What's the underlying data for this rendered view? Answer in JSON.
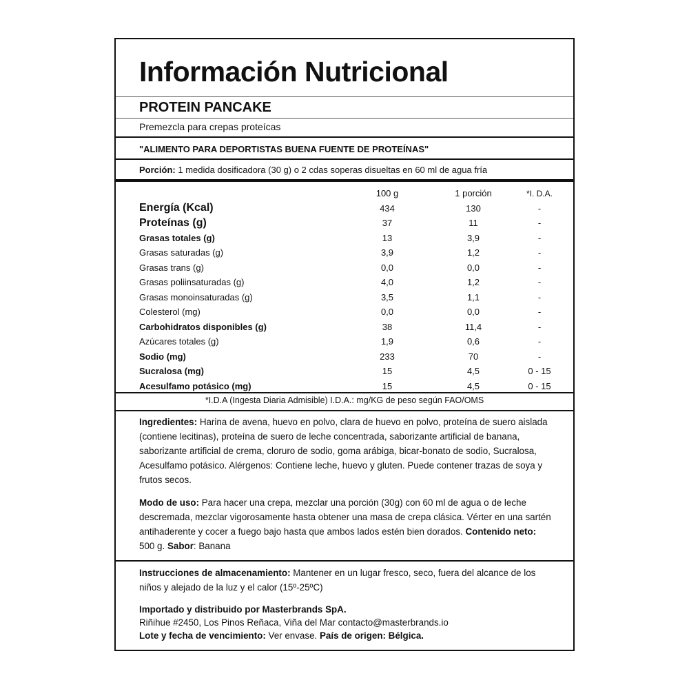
{
  "title": "Información Nutricional",
  "product": "PROTEIN PANCAKE",
  "subtitle": "Premezcla para crepas proteícas",
  "claim": "\"ALIMENTO PARA DEPORTISTAS BUENA FUENTE DE PROTEÍNAS\"",
  "portion": {
    "label": "Porción:",
    "text": " 1 medida dosificadora (30 g)   o 2 cdas soperas disueltas en 60 ml de agua fría"
  },
  "table": {
    "headers": [
      "",
      "100 g",
      "1 porción",
      "*I. D.A."
    ],
    "rows": [
      {
        "name": "Energía (Kcal)",
        "v100": "434",
        "vport": "130",
        "ida": "-",
        "style": "big"
      },
      {
        "name": "Proteínas (g)",
        "v100": "37",
        "vport": "11",
        "ida": "-",
        "style": "big"
      },
      {
        "name": "Grasas totales (g)",
        "v100": "13",
        "vport": "3,9",
        "ida": "-",
        "style": "bold"
      },
      {
        "name": "Grasas saturadas (g)",
        "v100": "3,9",
        "vport": "1,2",
        "ida": "-",
        "style": ""
      },
      {
        "name": "Grasas trans (g)",
        "v100": "0,0",
        "vport": "0,0",
        "ida": "-",
        "style": ""
      },
      {
        "name": "Grasas poliinsaturadas (g)",
        "v100": "4,0",
        "vport": "1,2",
        "ida": "-",
        "style": ""
      },
      {
        "name": "Grasas monoinsaturadas (g)",
        "v100": "3,5",
        "vport": "1,1",
        "ida": "-",
        "style": ""
      },
      {
        "name": "Colesterol (mg)",
        "v100": "0,0",
        "vport": "0,0",
        "ida": "-",
        "style": ""
      },
      {
        "name": "Carbohidratos disponibles (g)",
        "v100": "38",
        "vport": "11,4",
        "ida": "-",
        "style": "bold"
      },
      {
        "name": "Azúcares totales (g)",
        "v100": "1,9",
        "vport": "0,6",
        "ida": "-",
        "style": ""
      },
      {
        "name": "Sodio (mg)",
        "v100": "233",
        "vport": "70",
        "ida": "-",
        "style": "bold"
      },
      {
        "name": "Sucralosa (mg)",
        "v100": "15",
        "vport": "4,5",
        "ida": "0 - 15",
        "style": "bold"
      },
      {
        "name": "Acesulfamo potásico (mg)",
        "v100": "15",
        "vport": "4,5",
        "ida": "0 - 15",
        "style": "bold"
      }
    ]
  },
  "footnote": "*I.D.A (Ingesta Diaria Admisible) I.D.A.: mg/KG de peso según FAO/OMS",
  "ingredients": [
    {
      "t": "Ingredientes: ",
      "b": true
    },
    {
      "t": "Harina de avena, huevo en polvo, clara de huevo en polvo, proteína de suero aislada (contiene lecitinas), proteína de suero de leche concentrada, saborizante artificial de banana, saborizante artificial de crema, cloruro de sodio, goma arábiga, bicar-bonato de sodio, Sucralosa, Acesulfamo potásico. Alérgenos: Contiene leche, huevo y gluten. Puede contener trazas  de soya y frutos secos.",
      "b": false
    }
  ],
  "usage": [
    {
      "t": "Modo de uso: ",
      "b": true
    },
    {
      "t": "Para hacer una crepa, mezclar una porción (30g) con 60 ml de agua o de leche descremada, mezclar vigorosamente hasta obtener una masa de crepa clásica. Vérter en una sartén antihaderente y cocer a fuego bajo hasta que ambos lados estén bien dorados. ",
      "b": false
    },
    {
      "t": "Contenido neto:",
      "b": true
    },
    {
      "t": " 500 g. ",
      "b": false
    },
    {
      "t": "Sabor",
      "b": true
    },
    {
      "t": ": Banana",
      "b": false
    }
  ],
  "storage": [
    {
      "t": "Instrucciones de almacenamiento:",
      "b": true
    },
    {
      "t": " Mantener en un lugar fresco, seco, fuera del alcance de los niños y alejado de la luz y el calor (15º-25ºC)",
      "b": false
    }
  ],
  "importer": [
    {
      "t": "Importado y distribuido por Masterbrands SpA.",
      "b": true
    },
    {
      "t": "\nRiñihue #2450, Los Pinos Reñaca, Viña del Mar contacto@masterbrands.io\n",
      "b": false
    },
    {
      "t": "Lote y fecha de vencimiento:",
      "b": true
    },
    {
      "t": " Ver envase. ",
      "b": false
    },
    {
      "t": "País de origen: Bélgica.",
      "b": true
    }
  ]
}
